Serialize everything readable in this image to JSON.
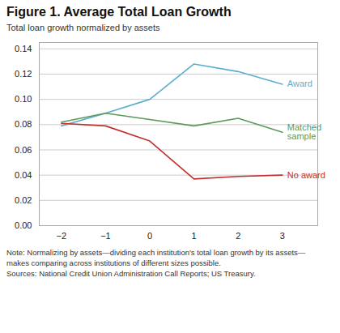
{
  "chart_data": {
    "type": "line",
    "title": "Figure 1. Average Total Loan Growth",
    "ylabel": "Total loan growth normalized by assets",
    "note": "Note: Normalizing by assets—dividing each institution's total loan growth by its assets—\nmakes comparing across institutions of different sizes possible.\nSources: National Credit Union Administration Call Reports; US Treasury.",
    "x": [
      -2,
      -1,
      0,
      1,
      2,
      3
    ],
    "series": [
      {
        "name": "Award",
        "color": "#5BAED0",
        "values": [
          0.079,
          0.089,
          0.1,
          0.128,
          0.122,
          0.112
        ]
      },
      {
        "name": "Matched\nsample",
        "color": "#5A9A5A",
        "values": [
          0.082,
          0.089,
          0.084,
          0.079,
          0.085,
          0.074
        ]
      },
      {
        "name": "No award",
        "color": "#C03030",
        "values": [
          0.081,
          0.079,
          0.067,
          0.037,
          0.039,
          0.04
        ]
      }
    ],
    "xlim": [
      -2.5,
      3.8
    ],
    "ylim": [
      0.0,
      0.145
    ],
    "xticks": [
      -2,
      -1,
      0,
      1,
      2,
      3
    ],
    "yticks": [
      {
        "value": 0.0,
        "label": "0.00"
      },
      0.02,
      0.04,
      0.06,
      0.08,
      {
        "value": 0.1,
        "label": "0.10"
      },
      0.12,
      0.14
    ],
    "grid": "y"
  }
}
